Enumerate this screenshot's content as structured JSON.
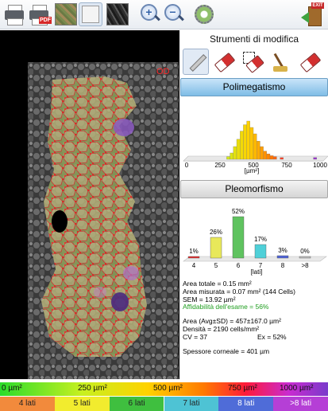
{
  "toolbar": {
    "print_icon": "printer-icon",
    "print_pdf_icon": "printer-pdf-icon",
    "pdf_badge": "PDF",
    "exit_badge": "EXIT",
    "zoom_in_symbol": "+",
    "zoom_out_symbol": "−"
  },
  "image": {
    "eye_label": "OD"
  },
  "tools": {
    "title": "Strumenti di modifica",
    "icons": [
      "pencil-icon",
      "eraser-icon",
      "area-eraser-icon",
      "broom-icon",
      "eraser-all-icon"
    ]
  },
  "sections": {
    "polimegatismo": "Polimegatismo",
    "pleomorfismo": "Pleomorfismo"
  },
  "chart_data": [
    {
      "type": "bar",
      "title": "Polimegatismo",
      "xlabel": "[µm²]",
      "xticks": [
        "0",
        "250",
        "500",
        "750",
        "1000"
      ],
      "xlim": [
        0,
        1000
      ],
      "bins": [
        {
          "x": 300,
          "value": 3
        },
        {
          "x": 325,
          "value": 7
        },
        {
          "x": 350,
          "value": 14
        },
        {
          "x": 375,
          "value": 22
        },
        {
          "x": 400,
          "value": 31
        },
        {
          "x": 425,
          "value": 38
        },
        {
          "x": 450,
          "value": 42
        },
        {
          "x": 475,
          "value": 35
        },
        {
          "x": 500,
          "value": 28
        },
        {
          "x": 525,
          "value": 20
        },
        {
          "x": 550,
          "value": 14
        },
        {
          "x": 575,
          "value": 9
        },
        {
          "x": 600,
          "value": 6
        },
        {
          "x": 625,
          "value": 4
        },
        {
          "x": 650,
          "value": 3
        },
        {
          "x": 700,
          "value": 2
        },
        {
          "x": 950,
          "value": 2
        }
      ]
    },
    {
      "type": "bar",
      "title": "Pleomorfismo",
      "xlabel": "[lati]",
      "categories": [
        "4",
        "5",
        "6",
        "7",
        "8",
        ">8"
      ],
      "values": [
        1,
        26,
        52,
        17,
        3,
        0
      ],
      "labels": [
        "1%",
        "26%",
        "52%",
        "17%",
        "3%",
        "0%"
      ],
      "colors": [
        "#e82c2c",
        "#e8e85a",
        "#5fc35f",
        "#4fd0d8",
        "#4f64d8",
        "#c0c0c0"
      ]
    }
  ],
  "stats": {
    "area_totale": "Area totale = 0.15 mm²",
    "area_misurata": "Area misurata = 0.07 mm² (144 Cells)",
    "sem": "SEM = 13.92 µm²",
    "affidabilita": "Affidabilità dell'esame = 56%",
    "area_avg": "Area (Avg±SD) = 457±167.0 µm²",
    "densita": "Densità = 2190 cells/mm²",
    "cv": "CV = 37",
    "ex": "Ex = 52%",
    "spessore": "Spessore corneale = 401 µm"
  },
  "legend_area": [
    "0 µm²",
    "250 µm²",
    "500 µm²",
    "750 µm²",
    "1000 µm²"
  ],
  "legend_sides": [
    {
      "label": "4 lati",
      "color": "#f28a3c"
    },
    {
      "label": "5 lati",
      "color": "#f2ec2e"
    },
    {
      "label": "6 lati",
      "color": "#3fbf3f"
    },
    {
      "label": "7 lati",
      "color": "#4ec3d4"
    },
    {
      "label": "8 lati",
      "color": "#4f6cd8"
    },
    {
      "label": ">8 lati",
      "color": "#b53fd6"
    }
  ]
}
